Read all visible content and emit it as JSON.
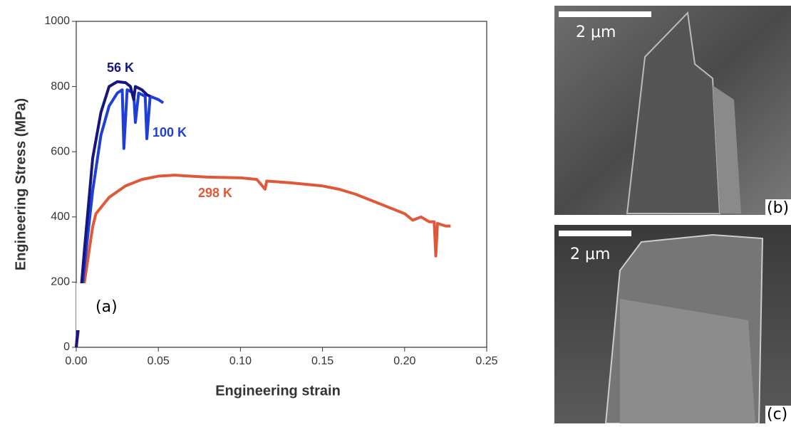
{
  "chart_data": {
    "type": "line",
    "xlabel": "Engineering strain",
    "ylabel": "Engineering Stress (MPa)",
    "panel_label": "(a)",
    "xlim": [
      0,
      0.25
    ],
    "ylim": [
      0,
      1000
    ],
    "xticks": [
      {
        "value": 0,
        "label": "0.00"
      },
      {
        "value": 0.05,
        "label": "0.05"
      },
      {
        "value": 0.1,
        "label": "0.10"
      },
      {
        "value": 0.15,
        "label": "0.15"
      },
      {
        "value": 0.2,
        "label": "0.20"
      },
      {
        "value": 0.25,
        "label": "0.25"
      }
    ],
    "yticks": [
      0,
      200,
      400,
      600,
      800,
      1000
    ],
    "series": [
      {
        "name": "56 K",
        "color": "#16167e",
        "x": [
          0,
          0.005,
          0.01,
          0.015,
          0.02,
          0.025,
          0.03,
          0.033,
          0.035,
          0.036,
          0.04,
          0.043,
          0.045
        ],
        "values": [
          0,
          300,
          580,
          720,
          800,
          815,
          812,
          800,
          760,
          800,
          790,
          775,
          770
        ]
      },
      {
        "name": "100 K",
        "color": "#1f3fd6",
        "x": [
          0,
          0.005,
          0.01,
          0.015,
          0.02,
          0.025,
          0.028,
          0.029,
          0.031,
          0.035,
          0.036,
          0.038,
          0.042,
          0.043,
          0.045,
          0.05,
          0.053
        ],
        "values": [
          0,
          250,
          480,
          650,
          740,
          780,
          790,
          610,
          790,
          780,
          690,
          780,
          770,
          640,
          770,
          760,
          750
        ]
      },
      {
        "name": "298 K",
        "color": "#e0583a",
        "x": [
          0,
          0.005,
          0.01,
          0.012,
          0.02,
          0.03,
          0.04,
          0.05,
          0.06,
          0.08,
          0.1,
          0.11,
          0.115,
          0.116,
          0.13,
          0.15,
          0.16,
          0.17,
          0.18,
          0.19,
          0.2,
          0.205,
          0.21,
          0.215,
          0.218,
          0.219,
          0.22,
          0.225,
          0.228
        ],
        "values": [
          0,
          200,
          370,
          410,
          460,
          495,
          515,
          525,
          528,
          522,
          520,
          515,
          485,
          510,
          505,
          495,
          485,
          470,
          450,
          430,
          410,
          390,
          400,
          385,
          385,
          280,
          380,
          372,
          372
        ]
      }
    ]
  },
  "panels": [
    {
      "label": "(b)",
      "scale_bar": "2 μm"
    },
    {
      "label": "(c)",
      "scale_bar": "2 μm"
    }
  ]
}
